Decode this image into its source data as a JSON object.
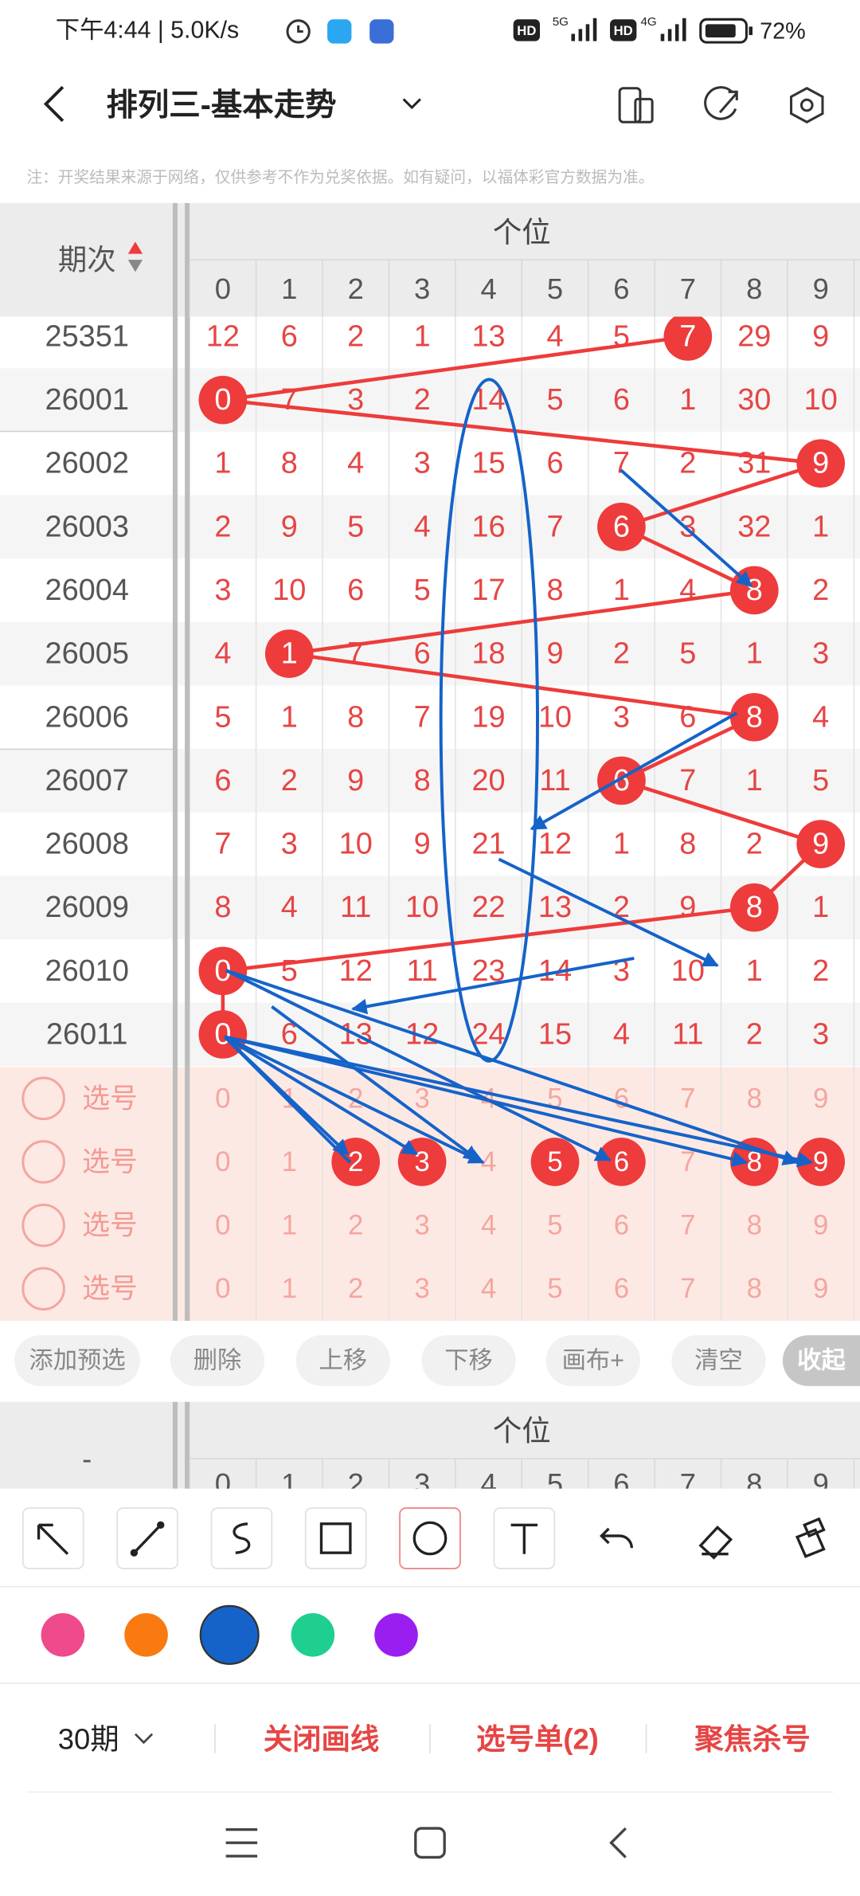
{
  "status_bar": {
    "time_speed": "下午4:44 | 5.0K/s",
    "hd": "HD",
    "net1": "5G",
    "net2": "4G",
    "battery": "72%"
  },
  "header": {
    "title": "排列三-基本走势"
  },
  "note": "注：开奖结果来源于网络，仅供参考不作为兑奖依据。如有疑问，以福体彩官方数据为准。",
  "table": {
    "period_header": "期次",
    "group_header": "个位",
    "digits": [
      0,
      1,
      2,
      3,
      4,
      5,
      6,
      7,
      8,
      9
    ],
    "rows": [
      {
        "period": "25351",
        "cells": [
          12,
          6,
          2,
          1,
          13,
          4,
          5,
          7,
          29,
          9
        ],
        "hit": 7
      },
      {
        "period": "26001",
        "cells": [
          0,
          7,
          3,
          2,
          14,
          5,
          6,
          1,
          30,
          10
        ],
        "hit": 0
      },
      {
        "period": "26002",
        "cells": [
          1,
          8,
          4,
          3,
          15,
          6,
          7,
          2,
          31,
          9
        ],
        "hit": 9
      },
      {
        "period": "26003",
        "cells": [
          2,
          9,
          5,
          4,
          16,
          7,
          6,
          3,
          32,
          1
        ],
        "hit": 6
      },
      {
        "period": "26004",
        "cells": [
          3,
          10,
          6,
          5,
          17,
          8,
          1,
          4,
          8,
          2
        ],
        "hit": 8
      },
      {
        "period": "26005",
        "cells": [
          4,
          1,
          7,
          6,
          18,
          9,
          2,
          5,
          1,
          3
        ],
        "hit": 1
      },
      {
        "period": "26006",
        "cells": [
          5,
          1,
          8,
          7,
          19,
          10,
          3,
          6,
          8,
          4
        ],
        "hit": 8
      },
      {
        "period": "26007",
        "cells": [
          6,
          2,
          9,
          8,
          20,
          11,
          6,
          7,
          1,
          5
        ],
        "hit": 6
      },
      {
        "period": "26008",
        "cells": [
          7,
          3,
          10,
          9,
          21,
          12,
          1,
          8,
          2,
          9
        ],
        "hit": 9
      },
      {
        "period": "26009",
        "cells": [
          8,
          4,
          11,
          10,
          22,
          13,
          2,
          9,
          8,
          1
        ],
        "hit": 8
      },
      {
        "period": "26010",
        "cells": [
          0,
          5,
          12,
          11,
          23,
          14,
          3,
          10,
          1,
          2
        ],
        "hit": 0
      },
      {
        "period": "26011",
        "cells": [
          0,
          6,
          13,
          12,
          24,
          15,
          4,
          11,
          2,
          3
        ],
        "hit": 0
      }
    ],
    "pick_label": "选号",
    "pick_rows": [
      [],
      [
        2,
        3,
        5,
        6,
        8,
        9
      ],
      [],
      []
    ]
  },
  "buttons": [
    "添加预选",
    "删除",
    "上移",
    "下移",
    "画布+",
    "清空",
    "收起"
  ],
  "second_header": {
    "period_header": "-",
    "group_header": "个位"
  },
  "palette": {
    "colors": [
      "#ee4a8c",
      "#f97a10",
      "#1563c9",
      "#1ecf8f",
      "#9b1ef0"
    ],
    "selected": 2
  },
  "footer": {
    "periods": "30期",
    "actions": [
      "关闭画线",
      "选号单(2)",
      "聚焦杀号"
    ]
  }
}
